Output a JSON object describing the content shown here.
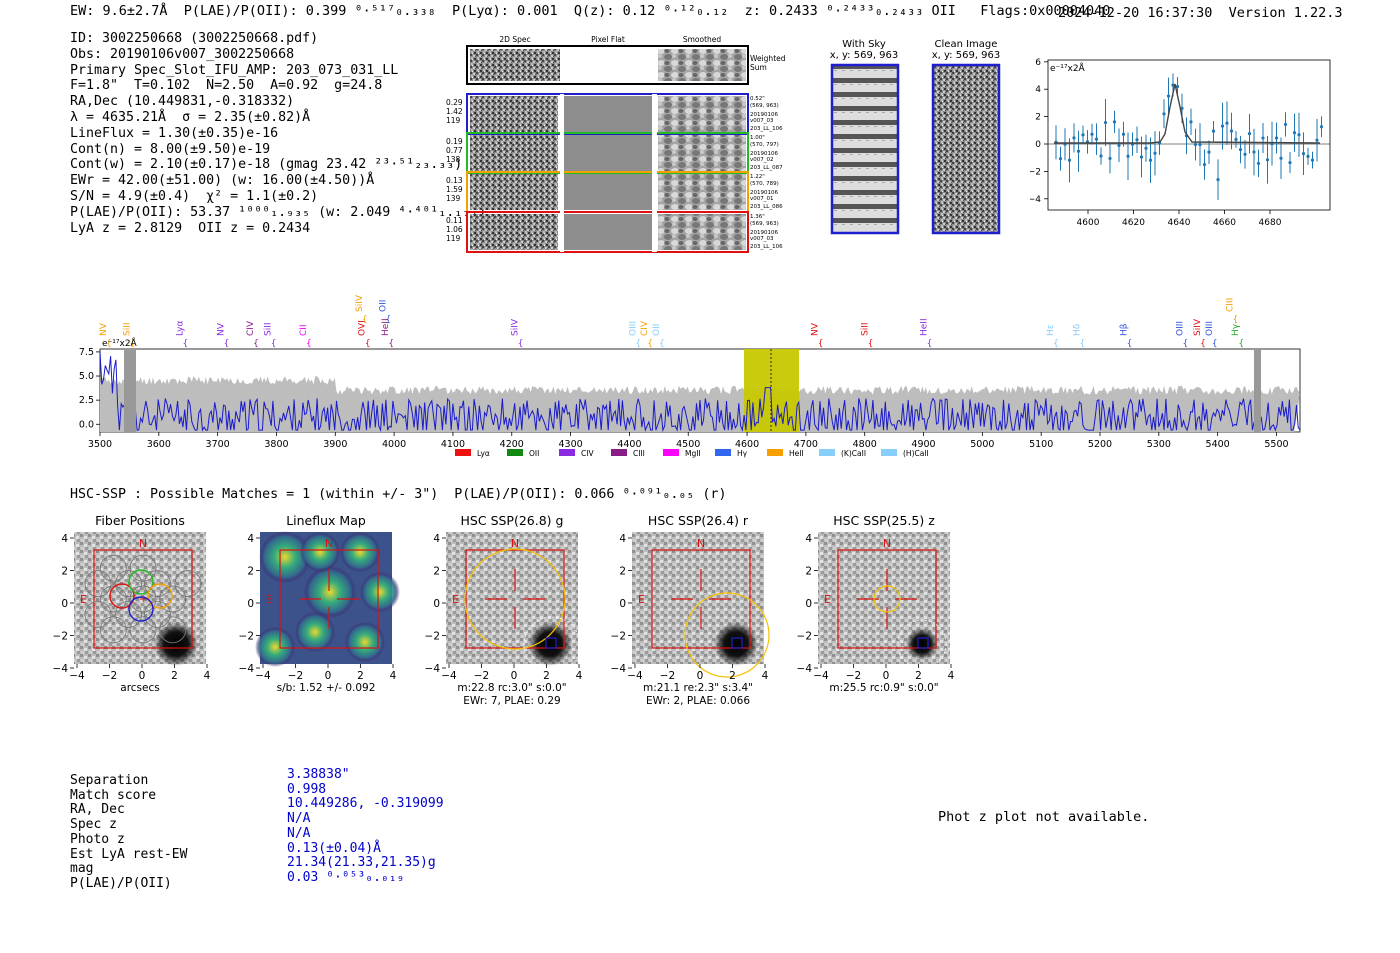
{
  "header": {
    "left": "EW: 9.6±2.7Å  P(LAE)/P(OII): 0.399 ⁰·⁵¹⁷₀.₃₃₈  P(Lyα): 0.001  Q(z): 0.12 ⁰·¹²₀.₁₂  z: 0.2433 ⁰·²⁴³³₀.₂₄₃₃ OII   Flags:0x00004040",
    "right": "2024-12-20 16:37:30  Version 1.22.3"
  },
  "info": [
    "ID: 3002250668 (3002250668.pdf)",
    "Obs: 20190106v007_3002250668",
    "Primary Spec_Slot_IFU_AMP: 203_073_031_LL",
    "F=1.8\"  T=0.102  N=2.50  A=0.92  g=24.8",
    "RA,Dec (10.449831,-0.318332)",
    "λ = 4635.21Å  σ = 2.35(±0.82)Å",
    "LineFlux = 1.30(±0.35)e-16",
    "Cont(n) = 8.00(±9.50)e-19",
    "Cont(w) = 2.10(±0.17)e-18 (gmag 23.42 ²³·⁵¹₂₃.₃₃)",
    "EWr = 42.00(±51.00) (w: 16.00(±4.50))Å",
    "S/N = 4.9(±0.4)  χ² = 1.1(±0.2)",
    "P(LAE)/P(OII): 53.37 ¹⁰⁰⁰₁.₉₃₅ (w: 2.049 ⁴·⁴⁰¹₁.₁₇₇)",
    "LyA z = 2.8129  OII z = 0.2434"
  ],
  "cutouts": {
    "col_2d": "2D Spec",
    "col_flat": "Pixel Flat",
    "col_smooth": "Smoothed",
    "weighted_sum": [
      "Weighted",
      "Sum"
    ],
    "fibers": [
      {
        "left": [
          "0.29",
          "1.42",
          "119"
        ],
        "right": [
          "0.52\"",
          "(569, 963)",
          "20190106",
          "v007_03",
          "203_LL_106"
        ],
        "color": "#1f1fcc"
      },
      {
        "left": [
          "0.19",
          "0.77",
          "138"
        ],
        "right": [
          "1.00\"",
          "(570, 797)",
          "20190106",
          "v007_02",
          "203_LL_087"
        ],
        "color": "#22bb22"
      },
      {
        "left": [
          "0.13",
          "1.59",
          "139"
        ],
        "right": [
          "1.22\"",
          "(570, 789)",
          "20190106",
          "v007_01",
          "203_LL_086"
        ],
        "color": "#f5a000"
      },
      {
        "left": [
          "0.11",
          "1.06",
          "119"
        ],
        "right": [
          "1.36\"",
          "(569, 963)",
          "20190106",
          "v007_03",
          "203_LL_106"
        ],
        "color": "#dd1111"
      }
    ],
    "with_sky": [
      "With Sky",
      "x, y: 569, 963"
    ],
    "clean_image": [
      "Clean Image",
      "x, y: 569, 963"
    ]
  },
  "zoom_plot": {
    "ylabel_unit": "e⁻¹⁷x2Å",
    "x_ticks": [
      "4600",
      "4620",
      "4640",
      "4660",
      "4680"
    ],
    "y_ticks": [
      "6",
      "4",
      "2",
      "0",
      "−2",
      "−4"
    ]
  },
  "spectrum": {
    "ylabel_unit": "e⁻¹⁷x2Å",
    "y_ticks": [
      "7.5",
      "5.0",
      "2.5",
      "0.0"
    ],
    "x_ticks": [
      "3500",
      "3600",
      "3700",
      "3800",
      "3900",
      "4000",
      "4100",
      "4200",
      "4300",
      "4400",
      "4500",
      "4600",
      "4700",
      "4800",
      "4900",
      "5000",
      "5100",
      "5200",
      "5300",
      "5400",
      "5500"
    ],
    "line_labels": [
      {
        "t": "NV",
        "c": "#f5a000",
        "row": 0
      },
      {
        "t": "SiII",
        "c": "#f5a000",
        "row": 0
      },
      {
        "t": "Lyα",
        "c": "#8a2be2",
        "row": 0
      },
      {
        "t": "NV",
        "c": "#8a2be2",
        "row": 0
      },
      {
        "t": "CIV",
        "c": "#8a1c8a",
        "row": 0
      },
      {
        "t": "SiII",
        "c": "#8a2be2",
        "row": 0
      },
      {
        "t": "CII",
        "c": "#e0e",
        "row": 0
      },
      {
        "t": "SiIV",
        "c": "#f5a000",
        "row": 1
      },
      {
        "t": "OVI",
        "c": "#dd1111",
        "row": 0
      },
      {
        "t": "OII",
        "c": "#3355dd",
        "row": 1
      },
      {
        "t": "HeII",
        "c": "#8a1c8a",
        "row": 0
      },
      {
        "t": "SiIV",
        "c": "#8a2be2",
        "row": 0
      },
      {
        "t": "OIII",
        "c": "#87cefa",
        "row": 0
      },
      {
        "t": "CIV",
        "c": "#f5a000",
        "row": 0
      },
      {
        "t": "OII",
        "c": "#87cefa",
        "row": 0
      },
      {
        "t": "NV",
        "c": "#dd1111",
        "row": 0
      },
      {
        "t": "SiII",
        "c": "#dd1111",
        "row": 0
      },
      {
        "t": "HeII",
        "c": "#8a2be2",
        "row": 0
      },
      {
        "t": "Hε",
        "c": "#87cefa",
        "row": 0
      },
      {
        "t": "Hδ",
        "c": "#87cefa",
        "row": 0
      },
      {
        "t": "Hβ",
        "c": "#3355dd",
        "row": 0
      },
      {
        "t": "OIII",
        "c": "#3355dd",
        "row": 0
      },
      {
        "t": "SiIV",
        "c": "#dd1111",
        "row": 0
      },
      {
        "t": "OIII",
        "c": "#3355dd",
        "row": 0
      },
      {
        "t": "CIII",
        "c": "#f5a000",
        "row": 1
      },
      {
        "t": "Hγ",
        "c": "#22aa22",
        "row": 0
      }
    ],
    "legend": [
      {
        "label": "Lyα",
        "color": "#ee1111"
      },
      {
        "label": "OII",
        "color": "#118811"
      },
      {
        "label": "CIV",
        "color": "#8a2be2"
      },
      {
        "label": "CIII",
        "color": "#8a1c8a"
      },
      {
        "label": "MgII",
        "color": "#ff00ff"
      },
      {
        "label": "Hγ",
        "color": "#3366ee"
      },
      {
        "label": "HeII",
        "color": "#f5a000"
      },
      {
        "label": "(K)CaII",
        "color": "#87cefa"
      },
      {
        "label": "(H)CaII",
        "color": "#87cefa"
      }
    ]
  },
  "hsc": {
    "line": "HSC-SSP : Possible Matches = 1 (within +/- 3\")  P(LAE)/P(OII): 0.066 ⁰·⁰⁹¹₀.₀₅ (r)",
    "panels": [
      {
        "title": "Fiber Positions",
        "caption": [
          "arcsecs"
        ]
      },
      {
        "title": "Lineflux Map",
        "caption": [
          "s/b: 1.52 +/- 0.092"
        ]
      },
      {
        "title": "HSC SSP(26.8) g",
        "caption": [
          "m:22.8 rc:3.0\"  s:0.0\"",
          "EWr: 7, PLAE: 0.29"
        ]
      },
      {
        "title": "HSC SSP(26.4) r",
        "caption": [
          "m:21.1  re:2.3\"  s:3.4\"",
          "EWr: 2, PLAE: 0.066"
        ]
      },
      {
        "title": "HSC SSP(25.5) z",
        "caption": [
          "m:25.5 rc:0.9\"  s:0.0\""
        ]
      }
    ],
    "tick_labels": [
      "4",
      "2",
      "0",
      "−2",
      "−4"
    ],
    "x_tick_labels": [
      "−4",
      "−2",
      "0",
      "2",
      "4"
    ],
    "north": "N",
    "east": "E"
  },
  "match": {
    "labels": [
      "Separation",
      "Match score",
      "RA, Dec",
      "Spec z",
      "Photo z",
      "Est LyA rest-EW",
      "mag",
      "P(LAE)/P(OII)"
    ],
    "values": [
      "3.38838\"",
      "0.998",
      "10.449286, -0.319099",
      "N/A",
      "N/A",
      "0.13(±0.04)Å",
      "21.34(21.33,21.35)g",
      "0.03 ⁰·⁰⁵³₀.₀₁₉"
    ]
  },
  "photz_msg": "Phot z plot not available.",
  "colors": {
    "spectrum": "#1a1acc",
    "highlight": "#c8c800",
    "errorbar": "#1f77b4"
  }
}
